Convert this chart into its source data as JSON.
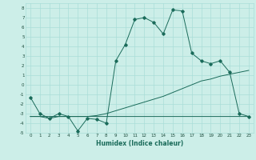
{
  "xlabel": "Humidex (Indice chaleur)",
  "bg_color": "#cceee8",
  "grid_color": "#aaddd8",
  "line_color": "#1a6b5a",
  "xlim": [
    -0.5,
    23.5
  ],
  "ylim": [
    -5,
    8.5
  ],
  "xticks": [
    0,
    1,
    2,
    3,
    4,
    5,
    6,
    7,
    8,
    9,
    10,
    11,
    12,
    13,
    14,
    15,
    16,
    17,
    18,
    19,
    20,
    21,
    22,
    23
  ],
  "yticks": [
    -5,
    -4,
    -3,
    -2,
    -1,
    0,
    1,
    2,
    3,
    4,
    5,
    6,
    7,
    8
  ],
  "y_main": [
    -1.3,
    -3.0,
    -3.5,
    -3.0,
    -3.3,
    -4.8,
    -3.5,
    -3.6,
    -4.0,
    2.5,
    4.2,
    6.8,
    7.0,
    6.5,
    5.3,
    7.8,
    7.7,
    3.3,
    2.5,
    2.2,
    2.5,
    1.3,
    -3.0,
    -3.3
  ],
  "y_trend": [
    -3.3,
    -3.3,
    -3.3,
    -3.3,
    -3.3,
    -3.3,
    -3.3,
    -3.2,
    -3.0,
    -2.7,
    -2.4,
    -2.1,
    -1.8,
    -1.5,
    -1.2,
    -0.8,
    -0.4,
    0.0,
    0.4,
    0.6,
    0.9,
    1.1,
    1.3,
    1.5
  ],
  "y_flat": [
    -3.3,
    -3.3,
    -3.5,
    -3.3,
    -3.3,
    -3.3,
    -3.3,
    -3.3,
    -3.3,
    -3.3,
    -3.3,
    -3.3,
    -3.3,
    -3.3,
    -3.3,
    -3.3,
    -3.3,
    -3.3,
    -3.3,
    -3.3,
    -3.3,
    -3.3,
    -3.3,
    -3.3
  ]
}
